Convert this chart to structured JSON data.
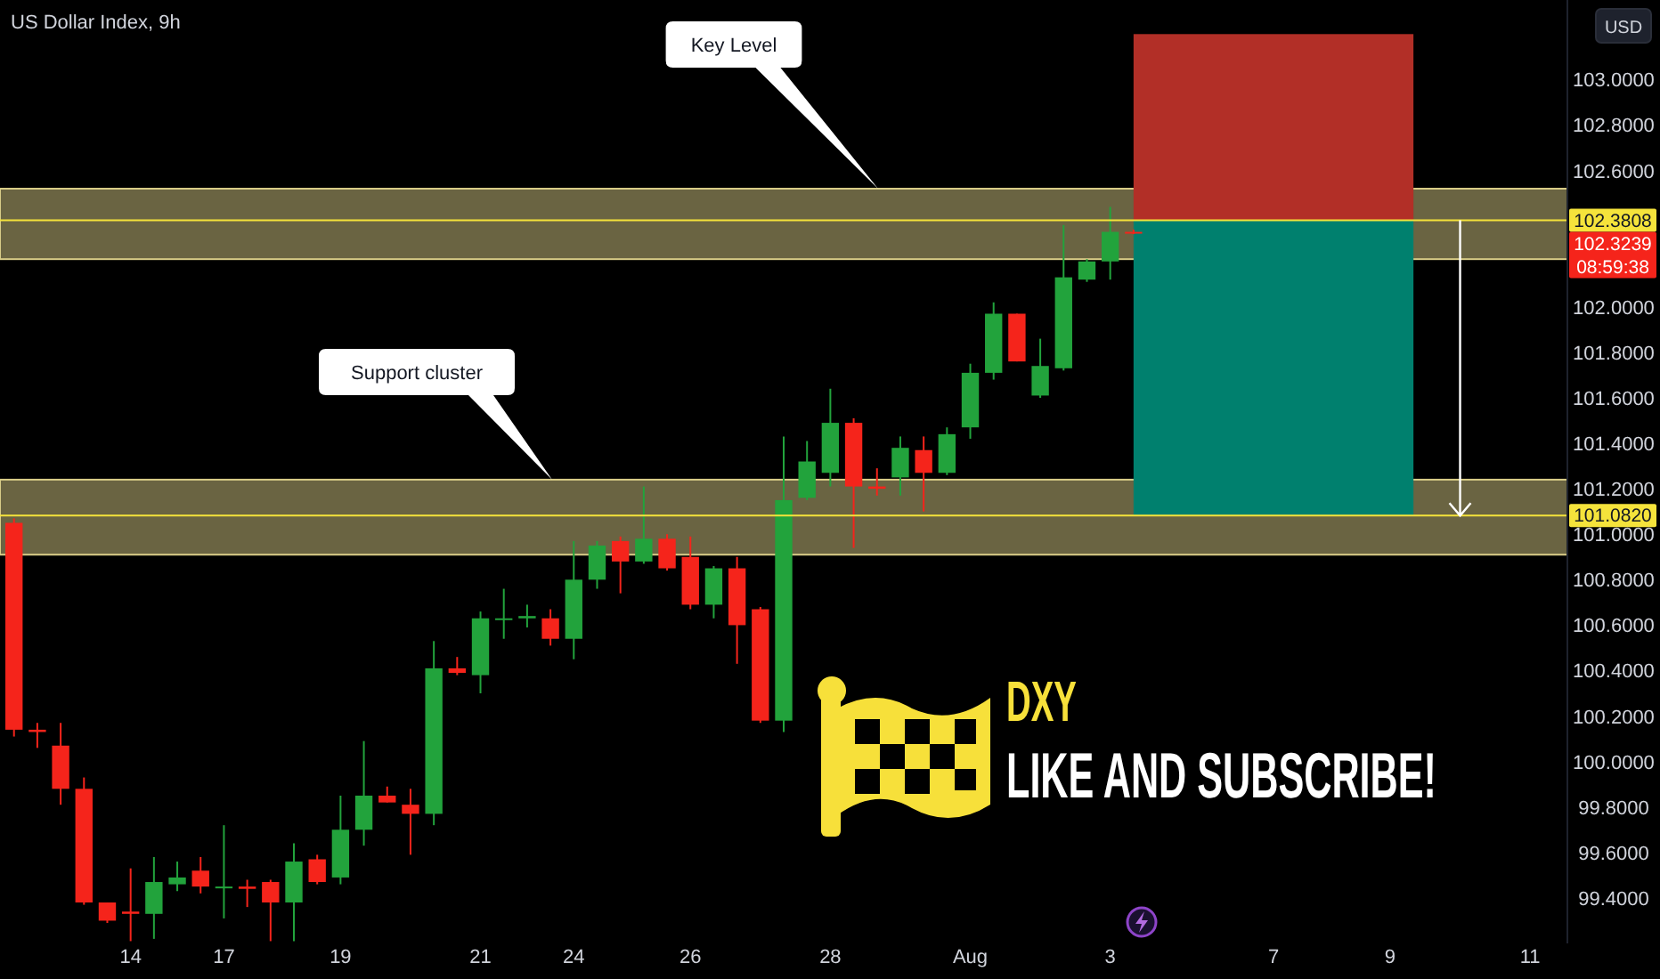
{
  "chart_data": {
    "type": "candlestick",
    "title": "US Dollar Index, 9h",
    "ylabel": "USD",
    "categories": [
      null,
      null,
      null,
      null,
      null,
      "14",
      null,
      null,
      null,
      "17",
      null,
      null,
      null,
      null,
      "19",
      null,
      null,
      null,
      null,
      null,
      "21",
      null,
      null,
      null,
      "24",
      null,
      null,
      null,
      null,
      "26",
      null,
      null,
      null,
      null,
      null,
      "28",
      null,
      null,
      null,
      null,
      null,
      "Aug",
      null,
      null,
      null,
      null,
      null,
      "3",
      null,
      null,
      null,
      null,
      null,
      null,
      "7",
      null,
      null,
      null,
      null,
      "9",
      null,
      null,
      null,
      null,
      null,
      "11",
      null
    ],
    "ohlc": [
      [
        101.05,
        101.07,
        100.11,
        100.14
      ],
      [
        100.14,
        100.17,
        100.06,
        100.13
      ],
      [
        100.07,
        100.17,
        99.81,
        99.88
      ],
      [
        99.88,
        99.93,
        99.37,
        99.38
      ],
      [
        99.38,
        99.38,
        99.29,
        99.3
      ],
      [
        99.34,
        99.53,
        99.21,
        99.33
      ],
      [
        99.33,
        99.58,
        99.22,
        99.47
      ],
      [
        99.46,
        99.56,
        99.43,
        99.49
      ],
      [
        99.52,
        99.58,
        99.42,
        99.45
      ],
      [
        99.45,
        99.72,
        99.31,
        99.45
      ],
      [
        99.45,
        99.48,
        99.36,
        99.44
      ],
      [
        99.47,
        99.48,
        99.21,
        99.38
      ],
      [
        99.38,
        99.64,
        99.21,
        99.56
      ],
      [
        99.57,
        99.59,
        99.46,
        99.47
      ],
      [
        99.49,
        99.85,
        99.46,
        99.7
      ],
      [
        99.7,
        100.09,
        99.63,
        99.85
      ],
      [
        99.85,
        99.89,
        99.82,
        99.82
      ],
      [
        99.81,
        99.88,
        99.59,
        99.77
      ],
      [
        99.77,
        100.53,
        99.72,
        100.41
      ],
      [
        100.41,
        100.46,
        100.38,
        100.39
      ],
      [
        100.38,
        100.66,
        100.3,
        100.63
      ],
      [
        100.63,
        100.76,
        100.54,
        100.63
      ],
      [
        100.63,
        100.69,
        100.59,
        100.64
      ],
      [
        100.63,
        100.67,
        100.51,
        100.54
      ],
      [
        100.54,
        100.97,
        100.45,
        100.8
      ],
      [
        100.8,
        100.97,
        100.76,
        100.95
      ],
      [
        100.97,
        100.99,
        100.74,
        100.88
      ],
      [
        100.88,
        101.21,
        100.87,
        100.98
      ],
      [
        100.98,
        101.0,
        100.84,
        100.85
      ],
      [
        100.9,
        100.99,
        100.67,
        100.69
      ],
      [
        100.69,
        100.86,
        100.63,
        100.85
      ],
      [
        100.85,
        100.9,
        100.43,
        100.6
      ],
      [
        100.67,
        100.68,
        100.17,
        100.18
      ],
      [
        100.18,
        101.43,
        100.13,
        101.15
      ],
      [
        101.16,
        101.41,
        101.15,
        101.32
      ],
      [
        101.27,
        101.64,
        101.21,
        101.49
      ],
      [
        101.49,
        101.51,
        100.94,
        101.21
      ],
      [
        101.21,
        101.29,
        101.17,
        101.2
      ],
      [
        101.25,
        101.43,
        101.17,
        101.38
      ],
      [
        101.37,
        101.43,
        101.1,
        101.27
      ],
      [
        101.27,
        101.47,
        101.26,
        101.44
      ],
      [
        101.47,
        101.75,
        101.42,
        101.71
      ],
      [
        101.71,
        102.02,
        101.68,
        101.97
      ],
      [
        101.97,
        101.97,
        101.76,
        101.76
      ],
      [
        101.61,
        101.86,
        101.6,
        101.74
      ],
      [
        101.73,
        102.36,
        101.72,
        102.13
      ],
      [
        102.12,
        102.21,
        102.11,
        102.2
      ],
      [
        102.2,
        102.44,
        102.12,
        102.33
      ],
      [
        102.33,
        102.34,
        102.32,
        102.3239
      ],
      null,
      null,
      null,
      null,
      null,
      null,
      null,
      null,
      null,
      null,
      null,
      null,
      null,
      null,
      null,
      null,
      null,
      null
    ],
    "colors": [
      "#f5241b",
      "#f5241b",
      "#f5241b",
      "#f5241b",
      "#f5241b",
      "#f5241b",
      "#22a33c",
      "#22a33c",
      "#f5241b",
      "#22a33c",
      "#f5241b",
      "#f5241b",
      "#22a33c",
      "#f5241b",
      "#22a33c",
      "#22a33c",
      "#f5241b",
      "#f5241b",
      "#22a33c",
      "#f5241b",
      "#22a33c",
      "#22a33c",
      "#22a33c",
      "#f5241b",
      "#22a33c",
      "#22a33c",
      "#f5241b",
      "#22a33c",
      "#f5241b",
      "#f5241b",
      "#22a33c",
      "#f5241b",
      "#f5241b",
      "#22a33c",
      "#22a33c",
      "#22a33c",
      "#f5241b",
      "#f5241b",
      "#22a33c",
      "#f5241b",
      "#22a33c",
      "#22a33c",
      "#22a33c",
      "#f5241b",
      "#22a33c",
      "#22a33c",
      "#22a33c",
      "#22a33c",
      "#f5241b",
      null,
      null,
      null,
      null,
      null,
      null,
      null,
      null,
      null,
      null,
      null,
      null,
      null,
      null,
      null,
      null,
      null,
      null
    ],
    "ylim": [
      99.2,
      103.35
    ],
    "yticks": [
      {
        "value": 103,
        "label": "103.0000"
      },
      {
        "value": 102.8,
        "label": "102.8000"
      },
      {
        "value": 102.6,
        "label": "102.6000"
      },
      {
        "value": 102,
        "label": "102.0000"
      },
      {
        "value": 101.8,
        "label": "101.8000"
      },
      {
        "value": 101.6,
        "label": "101.6000"
      },
      {
        "value": 101.4,
        "label": "101.4000"
      },
      {
        "value": 101.2,
        "label": "101.2000"
      },
      {
        "value": 101,
        "label": "101.0000"
      },
      {
        "value": 100.8,
        "label": "100.8000"
      },
      {
        "value": 100.6,
        "label": "100.6000"
      },
      {
        "value": 100.4,
        "label": "100.4000"
      },
      {
        "value": 100.2,
        "label": "100.2000"
      },
      {
        "value": 100,
        "label": "100.0000"
      },
      {
        "value": 99.8,
        "label": "99.8000"
      },
      {
        "value": 99.6,
        "label": "99.6000"
      },
      {
        "value": 99.4,
        "label": "99.4000"
      }
    ],
    "bands": [
      {
        "axis": "y",
        "from": 102.21,
        "to": 102.52,
        "color": "#6a6442"
      },
      {
        "axis": "y",
        "from": 100.91,
        "to": 101.24,
        "color": "#6a6442"
      },
      {
        "axis": "y",
        "from": 102.3808,
        "to": 103.2,
        "color": "#b22f27"
      },
      {
        "axis": "y",
        "from": 101.082,
        "to": 102.3808,
        "color": "#00806e"
      }
    ],
    "ref_lines": [
      {
        "axis": "y",
        "value": 102.3808,
        "label": "102.3808",
        "color": "#f5e33b"
      },
      {
        "axis": "y",
        "value": 101.082,
        "label": "101.0820",
        "color": "#f5e33b"
      }
    ],
    "annotations": [
      "102.3239",
      "08:59:38",
      "Key Level",
      "Support cluster",
      "DXY",
      "LIKE AND SUBSCRIBE!"
    ]
  }
}
